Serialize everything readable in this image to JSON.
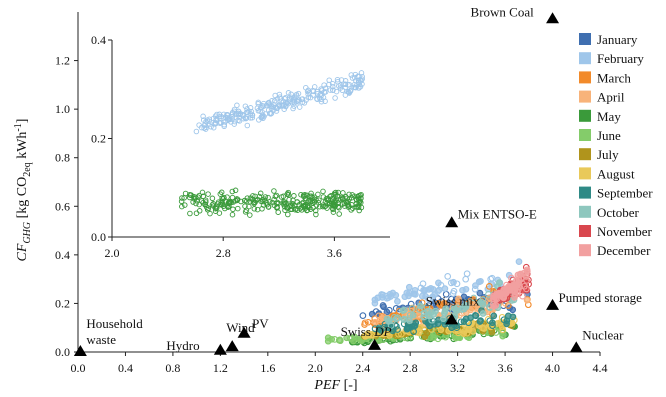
{
  "chart_data": {
    "type": "scatter",
    "title": "",
    "xlabel": "PEF [-]",
    "ylabel": "CF_GHG [kg CO2eq kWh-1]",
    "xlabel_parts": {
      "italic": "PEF",
      "rest": " [-]"
    },
    "ylabel_parts": {
      "cf": "CF",
      "sub": "GHG",
      "unit_open": " [kg CO",
      "sub2": "2eq",
      "unit_close": " kWh",
      "sup": "-1",
      "end": "]"
    },
    "xlim": [
      0.0,
      4.4
    ],
    "ylim": [
      0.0,
      1.4
    ],
    "x_ticks": [
      0.0,
      0.4,
      0.8,
      1.2,
      1.6,
      2.0,
      2.4,
      2.8,
      3.2,
      3.6,
      4.0,
      4.4
    ],
    "x_tick_labels": [
      "0.0",
      "0.4",
      "0.8",
      "1.2",
      "1.6",
      "2.0",
      "2.4",
      "2.8",
      "3.2",
      "3.6",
      "4.0",
      "4.4"
    ],
    "y_ticks": [
      0.0,
      0.2,
      0.4,
      0.6,
      0.8,
      1.0,
      1.2
    ],
    "y_tick_labels": [
      "0.0",
      "0.2",
      "0.4",
      "0.6",
      "0.8",
      "1.0",
      "1.2"
    ],
    "grid": false,
    "legend_position": "right",
    "reference_points": [
      {
        "label": "Brown Coal",
        "x": 4.0,
        "y": 1.37
      },
      {
        "label": "Mix ENTSO-E",
        "x": 3.15,
        "y": 0.53
      },
      {
        "label": "Pumped storage",
        "x": 4.0,
        "y": 0.19
      },
      {
        "label": "Swiss mix",
        "x": 3.15,
        "y": 0.13
      },
      {
        "label": "Swiss DP",
        "label_normal": "Swiss ",
        "label_italic": "DP",
        "x": 2.5,
        "y": 0.025
      },
      {
        "label": "Nuclear",
        "x": 4.2,
        "y": 0.015
      },
      {
        "label": "Household waste",
        "label_lines": [
          "Household",
          "waste"
        ],
        "x": 0.02,
        "y": 0.0
      },
      {
        "label": "Hydro",
        "x": 1.2,
        "y": 0.005
      },
      {
        "label": "Wind",
        "x": 1.3,
        "y": 0.02
      },
      {
        "label": "PV",
        "x": 1.4,
        "y": 0.075
      }
    ],
    "series": [
      {
        "name": "January",
        "color": "#3f6fb0",
        "x_range": [
          2.4,
          3.8
        ],
        "y_range": [
          0.12,
          0.3
        ]
      },
      {
        "name": "February",
        "color": "#9fc6ea",
        "x_range": [
          2.5,
          3.8
        ],
        "y_range": [
          0.18,
          0.38
        ]
      },
      {
        "name": "March",
        "color": "#f28a2a",
        "x_range": [
          2.4,
          3.8
        ],
        "y_range": [
          0.08,
          0.32
        ]
      },
      {
        "name": "April",
        "color": "#f8b37a",
        "x_range": [
          2.4,
          3.8
        ],
        "y_range": [
          0.08,
          0.28
        ]
      },
      {
        "name": "May",
        "color": "#3a9a3a",
        "x_range": [
          2.3,
          3.7
        ],
        "y_range": [
          0.03,
          0.12
        ]
      },
      {
        "name": "June",
        "color": "#84cc6a",
        "x_range": [
          2.1,
          3.6
        ],
        "y_range": [
          0.03,
          0.12
        ]
      },
      {
        "name": "July",
        "color": "#b0941c",
        "x_range": [
          2.4,
          3.7
        ],
        "y_range": [
          0.05,
          0.14
        ]
      },
      {
        "name": "August",
        "color": "#e9c95a",
        "x_range": [
          2.4,
          3.7
        ],
        "y_range": [
          0.05,
          0.16
        ]
      },
      {
        "name": "September",
        "color": "#2f8a86",
        "x_range": [
          2.5,
          3.7
        ],
        "y_range": [
          0.07,
          0.2
        ]
      },
      {
        "name": "October",
        "color": "#8ec7be",
        "x_range": [
          2.6,
          3.7
        ],
        "y_range": [
          0.1,
          0.3
        ]
      },
      {
        "name": "November",
        "color": "#d9474e",
        "x_range": [
          3.5,
          3.8
        ],
        "y_range": [
          0.18,
          0.36
        ]
      },
      {
        "name": "December",
        "color": "#f2a0a0",
        "x_range": [
          3.5,
          3.8
        ],
        "y_range": [
          0.18,
          0.38
        ]
      }
    ],
    "inset": {
      "type": "scatter",
      "xlim": [
        2.0,
        4.0
      ],
      "ylim": [
        0.0,
        0.4
      ],
      "x_ticks": [
        2.0,
        2.8,
        3.6
      ],
      "x_tick_labels": [
        "2.0",
        "2.8",
        "3.6"
      ],
      "y_ticks": [
        0.0,
        0.2,
        0.4
      ],
      "y_tick_labels": [
        "0.0",
        "0.2",
        "0.4"
      ],
      "series": [
        {
          "name": "February",
          "color": "#9fc6ea",
          "x_range": [
            2.6,
            3.8
          ],
          "y_range": [
            0.18,
            0.34
          ]
        },
        {
          "name": "May",
          "color": "#3a9a3a",
          "x_range": [
            2.5,
            3.8
          ],
          "y_range": [
            0.03,
            0.12
          ]
        }
      ]
    }
  }
}
